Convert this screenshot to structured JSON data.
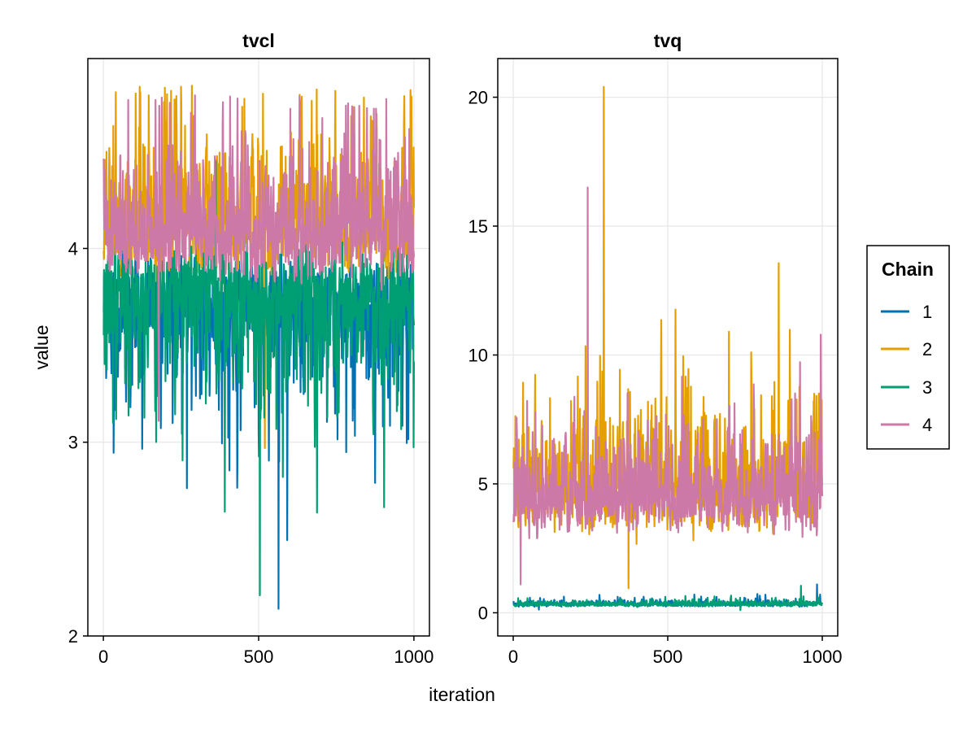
{
  "figure": {
    "xlabel": "iteration",
    "ylabel": "value"
  },
  "legend": {
    "title": "Chain",
    "entries": [
      {
        "label": "1",
        "color": "#0072B2"
      },
      {
        "label": "2",
        "color": "#E69F00"
      },
      {
        "label": "3",
        "color": "#009E73"
      },
      {
        "label": "4",
        "color": "#CC79A7"
      }
    ]
  },
  "chart_data": [
    {
      "type": "line",
      "title": "tvcl",
      "xlabel": "iteration",
      "ylabel": "value",
      "xlim": [
        -50,
        1050
      ],
      "ylim": [
        2.0,
        4.98
      ],
      "xticks": [
        0,
        500,
        1000
      ],
      "yticks": [
        2,
        3,
        4
      ],
      "xtick_labels": [
        "0",
        "500",
        "1000"
      ],
      "ytick_labels": [
        "2",
        "3",
        "4"
      ],
      "grid": true,
      "n_iterations": 1000,
      "series": [
        {
          "name": "1",
          "color": "#0072B2",
          "center": 3.72,
          "spread": 0.36,
          "min": 2.14,
          "max": 4.46,
          "skew": "low",
          "seed": 11
        },
        {
          "name": "2",
          "color": "#E69F00",
          "center": 4.12,
          "spread": 0.28,
          "min": 2.97,
          "max": 4.84,
          "skew": "high",
          "seed": 23
        },
        {
          "name": "3",
          "color": "#009E73",
          "center": 3.78,
          "spread": 0.34,
          "min": 2.21,
          "max": 4.45,
          "skew": "low",
          "seed": 37
        },
        {
          "name": "4",
          "color": "#CC79A7",
          "center": 4.06,
          "spread": 0.26,
          "min": 3.11,
          "max": 4.79,
          "skew": "high",
          "seed": 41
        }
      ]
    },
    {
      "type": "line",
      "title": "tvq",
      "xlabel": "iteration",
      "ylabel": "",
      "xlim": [
        -50,
        1050
      ],
      "ylim": [
        -0.9,
        21.5
      ],
      "xticks": [
        0,
        500,
        1000
      ],
      "yticks": [
        0,
        5,
        10,
        15,
        20
      ],
      "xtick_labels": [
        "0",
        "500",
        "1000"
      ],
      "ytick_labels": [
        "0",
        "5",
        "10",
        "15",
        "20"
      ],
      "grid": true,
      "n_iterations": 1000,
      "series": [
        {
          "name": "1",
          "color": "#0072B2",
          "center": 0.33,
          "spread": 0.1,
          "min": 0.12,
          "max": 1.1,
          "skew": "high",
          "seed": 53
        },
        {
          "name": "2",
          "color": "#E69F00",
          "center": 4.8,
          "spread": 1.9,
          "min": 0.95,
          "max": 20.4,
          "skew": "high",
          "seed": 61
        },
        {
          "name": "3",
          "color": "#009E73",
          "center": 0.32,
          "spread": 0.09,
          "min": 0.1,
          "max": 1.05,
          "skew": "high",
          "seed": 71
        },
        {
          "name": "4",
          "color": "#CC79A7",
          "center": 4.4,
          "spread": 1.5,
          "min": 1.1,
          "max": 16.5,
          "skew": "high",
          "seed": 79
        }
      ]
    }
  ]
}
